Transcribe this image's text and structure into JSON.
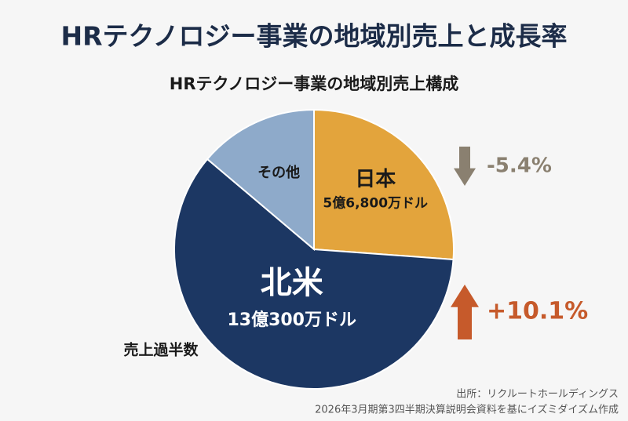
{
  "chart_data": {
    "type": "pie",
    "title": "HRテクノロジー事業の地域別売上と成長率",
    "subtitle": "HRテクノロジー事業の地域別売上構成",
    "categories": [
      "日本",
      "北米",
      "その他"
    ],
    "values": [
      568000000,
      1303000000,
      300000000
    ],
    "value_labels": [
      "5億6,800万ドル",
      "13億300万ドル",
      null
    ],
    "colors": [
      "#e3a43c",
      "#1c3763",
      "#8eaaca"
    ],
    "label_colors": [
      "#1a1a1a",
      "#ffffff",
      "#1a1a1a"
    ],
    "growth": [
      {
        "value": -5.4,
        "label": "-5.4%"
      },
      {
        "value": 10.1,
        "label": "+10.1%"
      },
      null
    ],
    "up_color": "#c65a2b",
    "down_color": "#8a8070",
    "annotations": [
      "売上過半数"
    ],
    "source": [
      "出所：リクルートホールディングス",
      "2026年3月期第3四半期決算説明会資料を基にイズミダイズム作成"
    ]
  }
}
